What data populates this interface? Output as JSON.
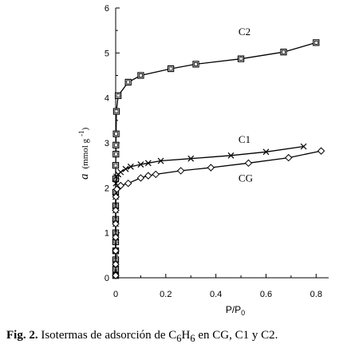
{
  "caption": {
    "fig_label": "Fig. 2.",
    "text_before": " Isotermas de adsorción de C",
    "sub1": "6",
    "mid": "H",
    "sub2": "6",
    "text_after": " en CG, C1 y C2."
  },
  "chart_data": {
    "type": "line",
    "xlabel_main": "P/P",
    "xlabel_sub": "0",
    "ylabel_var": "a",
    "ylabel_unit": "(mmol g",
    "ylabel_exp": "-1",
    "ylabel_close": ")",
    "xlim": [
      0,
      0.85
    ],
    "ylim": [
      0,
      6
    ],
    "x_ticks": [
      0,
      0.2,
      0.4,
      0.6,
      0.8
    ],
    "x_tick_labels": [
      "0",
      "0.2",
      "0.4",
      "0.6",
      "0.8"
    ],
    "y_ticks": [
      0,
      1,
      2,
      3,
      4,
      5,
      6
    ],
    "y_tick_labels": [
      "0",
      "1",
      "2",
      "3",
      "4",
      "5",
      "6"
    ],
    "series": [
      {
        "name": "C2",
        "marker": "square",
        "label_at": [
          0.49,
          5.4
        ],
        "points": [
          [
            0.0,
            0.05
          ],
          [
            0.0,
            0.2
          ],
          [
            0.0,
            0.4
          ],
          [
            0.0,
            0.6
          ],
          [
            0.0,
            0.8
          ],
          [
            0.0,
            1.0
          ],
          [
            0.0,
            1.3
          ],
          [
            0.0,
            1.6
          ],
          [
            0.0,
            1.9
          ],
          [
            0.0,
            2.2
          ],
          [
            0.0,
            2.5
          ],
          [
            0.001,
            2.75
          ],
          [
            0.001,
            2.95
          ],
          [
            0.002,
            3.2
          ],
          [
            0.003,
            3.7
          ],
          [
            0.01,
            4.05
          ],
          [
            0.05,
            4.35
          ],
          [
            0.1,
            4.5
          ],
          [
            0.22,
            4.65
          ],
          [
            0.32,
            4.75
          ],
          [
            0.5,
            4.87
          ],
          [
            0.67,
            5.02
          ],
          [
            0.8,
            5.23
          ]
        ]
      },
      {
        "name": "C1",
        "marker": "x",
        "label_at": [
          0.49,
          3.0
        ],
        "points": [
          [
            0.0,
            0.05
          ],
          [
            0.0,
            0.3
          ],
          [
            0.0,
            0.6
          ],
          [
            0.0,
            0.9
          ],
          [
            0.0,
            1.2
          ],
          [
            0.0,
            1.5
          ],
          [
            0.0,
            1.8
          ],
          [
            0.001,
            2.1
          ],
          [
            0.003,
            2.25
          ],
          [
            0.01,
            2.3
          ],
          [
            0.02,
            2.35
          ],
          [
            0.04,
            2.42
          ],
          [
            0.06,
            2.47
          ],
          [
            0.1,
            2.52
          ],
          [
            0.13,
            2.55
          ],
          [
            0.18,
            2.6
          ],
          [
            0.3,
            2.65
          ],
          [
            0.46,
            2.72
          ],
          [
            0.6,
            2.8
          ],
          [
            0.75,
            2.92
          ]
        ]
      },
      {
        "name": "CG",
        "marker": "diamond",
        "label_at": [
          0.49,
          2.14
        ],
        "points": [
          [
            0.0,
            0.05
          ],
          [
            0.0,
            0.3
          ],
          [
            0.0,
            0.6
          ],
          [
            0.0,
            0.9
          ],
          [
            0.0,
            1.2
          ],
          [
            0.0,
            1.5
          ],
          [
            0.001,
            1.8
          ],
          [
            0.005,
            1.97
          ],
          [
            0.02,
            2.05
          ],
          [
            0.05,
            2.1
          ],
          [
            0.1,
            2.22
          ],
          [
            0.13,
            2.27
          ],
          [
            0.16,
            2.3
          ],
          [
            0.26,
            2.38
          ],
          [
            0.38,
            2.45
          ],
          [
            0.53,
            2.55
          ],
          [
            0.69,
            2.67
          ],
          [
            0.82,
            2.82
          ]
        ]
      }
    ]
  }
}
